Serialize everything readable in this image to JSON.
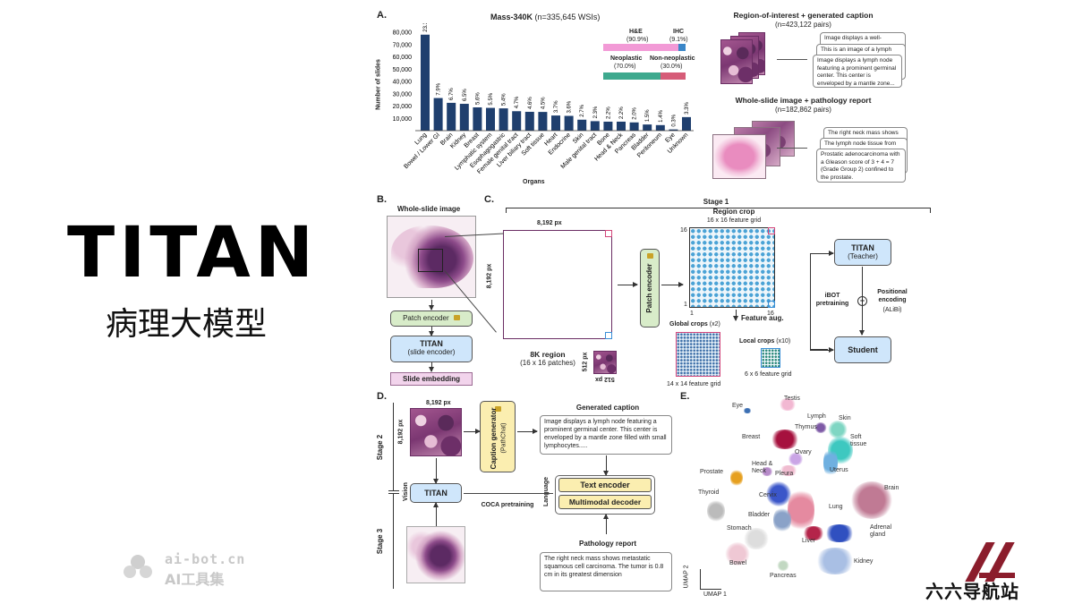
{
  "left": {
    "title": "TITAN",
    "subtitle": "病理大模型",
    "watermark_domain": "ai-bot.cn",
    "watermark_name": "AI工具集",
    "logo_text": "六六导航站",
    "colors": {
      "logo": "#8b1d2c",
      "watermark": "#c8c8c8"
    }
  },
  "panelA": {
    "letter": "A.",
    "chart_data": {
      "type": "bar",
      "title": "Mass-340K",
      "title_suffix": "(n=335,645 WSIs)",
      "ylabel": "Number of slides",
      "xlabel": "Organs",
      "ylim": [
        0,
        80000
      ],
      "yticks": [
        "80,000",
        "70,000",
        "60,000",
        "50,000",
        "40,000",
        "30,000",
        "20,000",
        "10,000"
      ],
      "categories": [
        "Lung",
        "Bowel / Lower GI",
        "Brain",
        "Kidney",
        "Breast",
        "Lymphatic system",
        "Esophagogastric",
        "Female genital tract",
        "Liver biliary tract",
        "Soft tissue",
        "Heart",
        "Endocrine",
        "Skin",
        "Male genital tract",
        "Bone",
        "Head & Neck",
        "Pancreas",
        "Bladder",
        "Peritoneum",
        "Eye",
        "Unknown"
      ],
      "values": [
        78000,
        26500,
        22600,
        21800,
        18900,
        18500,
        18100,
        15800,
        15300,
        15200,
        12300,
        12000,
        8900,
        7700,
        7300,
        7300,
        6700,
        5000,
        4500,
        1000,
        11000
      ],
      "labels": [
        "23.3%",
        "7.9%",
        "6.7%",
        "6.5%",
        "5.6%",
        "5.5%",
        "5.4%",
        "4.7%",
        "4.6%",
        "4.5%",
        "3.7%",
        "3.6%",
        "2.7%",
        "2.3%",
        "2.2%",
        "2.2%",
        "2.0%",
        "1.5%",
        "1.4%",
        "0.3%",
        "3.3%"
      ],
      "color": "#1f3f6e"
    },
    "stain": {
      "he_label": "H&E",
      "he_pct": "(90.9%)",
      "ihc_label": "IHC",
      "ihc_pct": "(9.1%)",
      "he_frac": 0.909,
      "he_color": "#f29ad6",
      "ihc_color": "#3a86c8"
    },
    "neo": {
      "neo_label": "Neoplastic",
      "neo_pct": "(70.0%)",
      "non_label": "Non-neoplastic",
      "non_pct": "(30.0%)",
      "neo_frac": 0.7,
      "neo_color": "#3ea98e",
      "non_color": "#d65c78"
    },
    "roi_title": "Region-of-interest + generated caption",
    "roi_count": "(n=423,122 pairs)",
    "roi_notes": [
      "Image displays a well-",
      "This is an image of a lymph",
      "Image displays a lymph node featuring a prominent germinal center. This center is enveloped by a mantle zone..."
    ],
    "wsi_title": "Whole-slide image + pathology report",
    "wsi_count": "(n=182,862 pairs)",
    "wsi_notes": [
      "The right neck mass shows",
      "The lymph node tissue from",
      "Prostatic adenocarcinoma with a Gleason score of 3 + 4 = 7 (Grade Group 2) confined to the prostate."
    ]
  },
  "panelB": {
    "letter": "B.",
    "wsi_label": "Whole-slide image",
    "patch_encoder": "Patch encoder",
    "titan": "TITAN",
    "titan_sub": "(slide encoder)",
    "embedding": "Slide embedding"
  },
  "panelC": {
    "letter": "C.",
    "stage": "Stage 1",
    "px_top": "8,192 px",
    "px_side": "8,192 px",
    "region_label": "8K region",
    "region_sub": "(16 x 16 patches)",
    "patch_px_a": "512 px",
    "patch_px_b": "512 px",
    "patch_encoder": "Patch encoder",
    "crop_title": "Region crop",
    "crop_sub": "16 x 16 feature grid",
    "tick_16": "16",
    "tick_1": "1",
    "tick_1b": "1",
    "tick_16b": "16",
    "global": "Global crops",
    "global_n": "(x2)",
    "global_grid": "14 x 14 feature grid",
    "local": "Local crops",
    "local_n": "(x10)",
    "local_grid": "6 x 6 feature grid",
    "feat_aug": "Feature aug.",
    "teacher": "TITAN",
    "teacher_sub": "(Teacher)",
    "student": "Student",
    "ibot": "iBOT pretraining",
    "pos": "Positional encoding",
    "alibi": "(ALiBi)"
  },
  "panelD": {
    "letter": "D.",
    "px_top": "8,192 px",
    "px_side": "8,192 px",
    "stage2": "Stage 2",
    "stage3": "Stage 3",
    "vision": "Vision",
    "titan": "TITAN",
    "caption_gen": "Caption generator",
    "caption_sub": "(PathChat)",
    "gen_caption_title": "Generated caption",
    "gen_caption": "Image displays a lymph node featuring a prominent germinal center. This center is enveloped by a mantle zone filled with small lymphocytes.....",
    "coca": "COCA pretraining",
    "language": "Language",
    "text_encoder": "Text encoder",
    "mm_decoder": "Multimodal decoder",
    "report_title": "Pathology report",
    "report": "The right neck mass shows metastatic squamous cell carcinoma. The tumor is 0.8 cm in its greatest dimension"
  },
  "panelE": {
    "letter": "E.",
    "axis_y": "UMAP 2",
    "axis_x": "UMAP 1",
    "labels": [
      "Testis",
      "Eye",
      "Lymph",
      "Skin",
      "Thymus",
      "Breast",
      "Soft tissue",
      "Ovary",
      "Uterus",
      "Head & Neck",
      "Pleura",
      "Prostate",
      "Cervix",
      "Brain",
      "Thyroid",
      "Lung",
      "Bladder",
      "Adrenal gland",
      "Stomach",
      "Liver",
      "Bowel",
      "Kidney",
      "Pancreas"
    ]
  }
}
